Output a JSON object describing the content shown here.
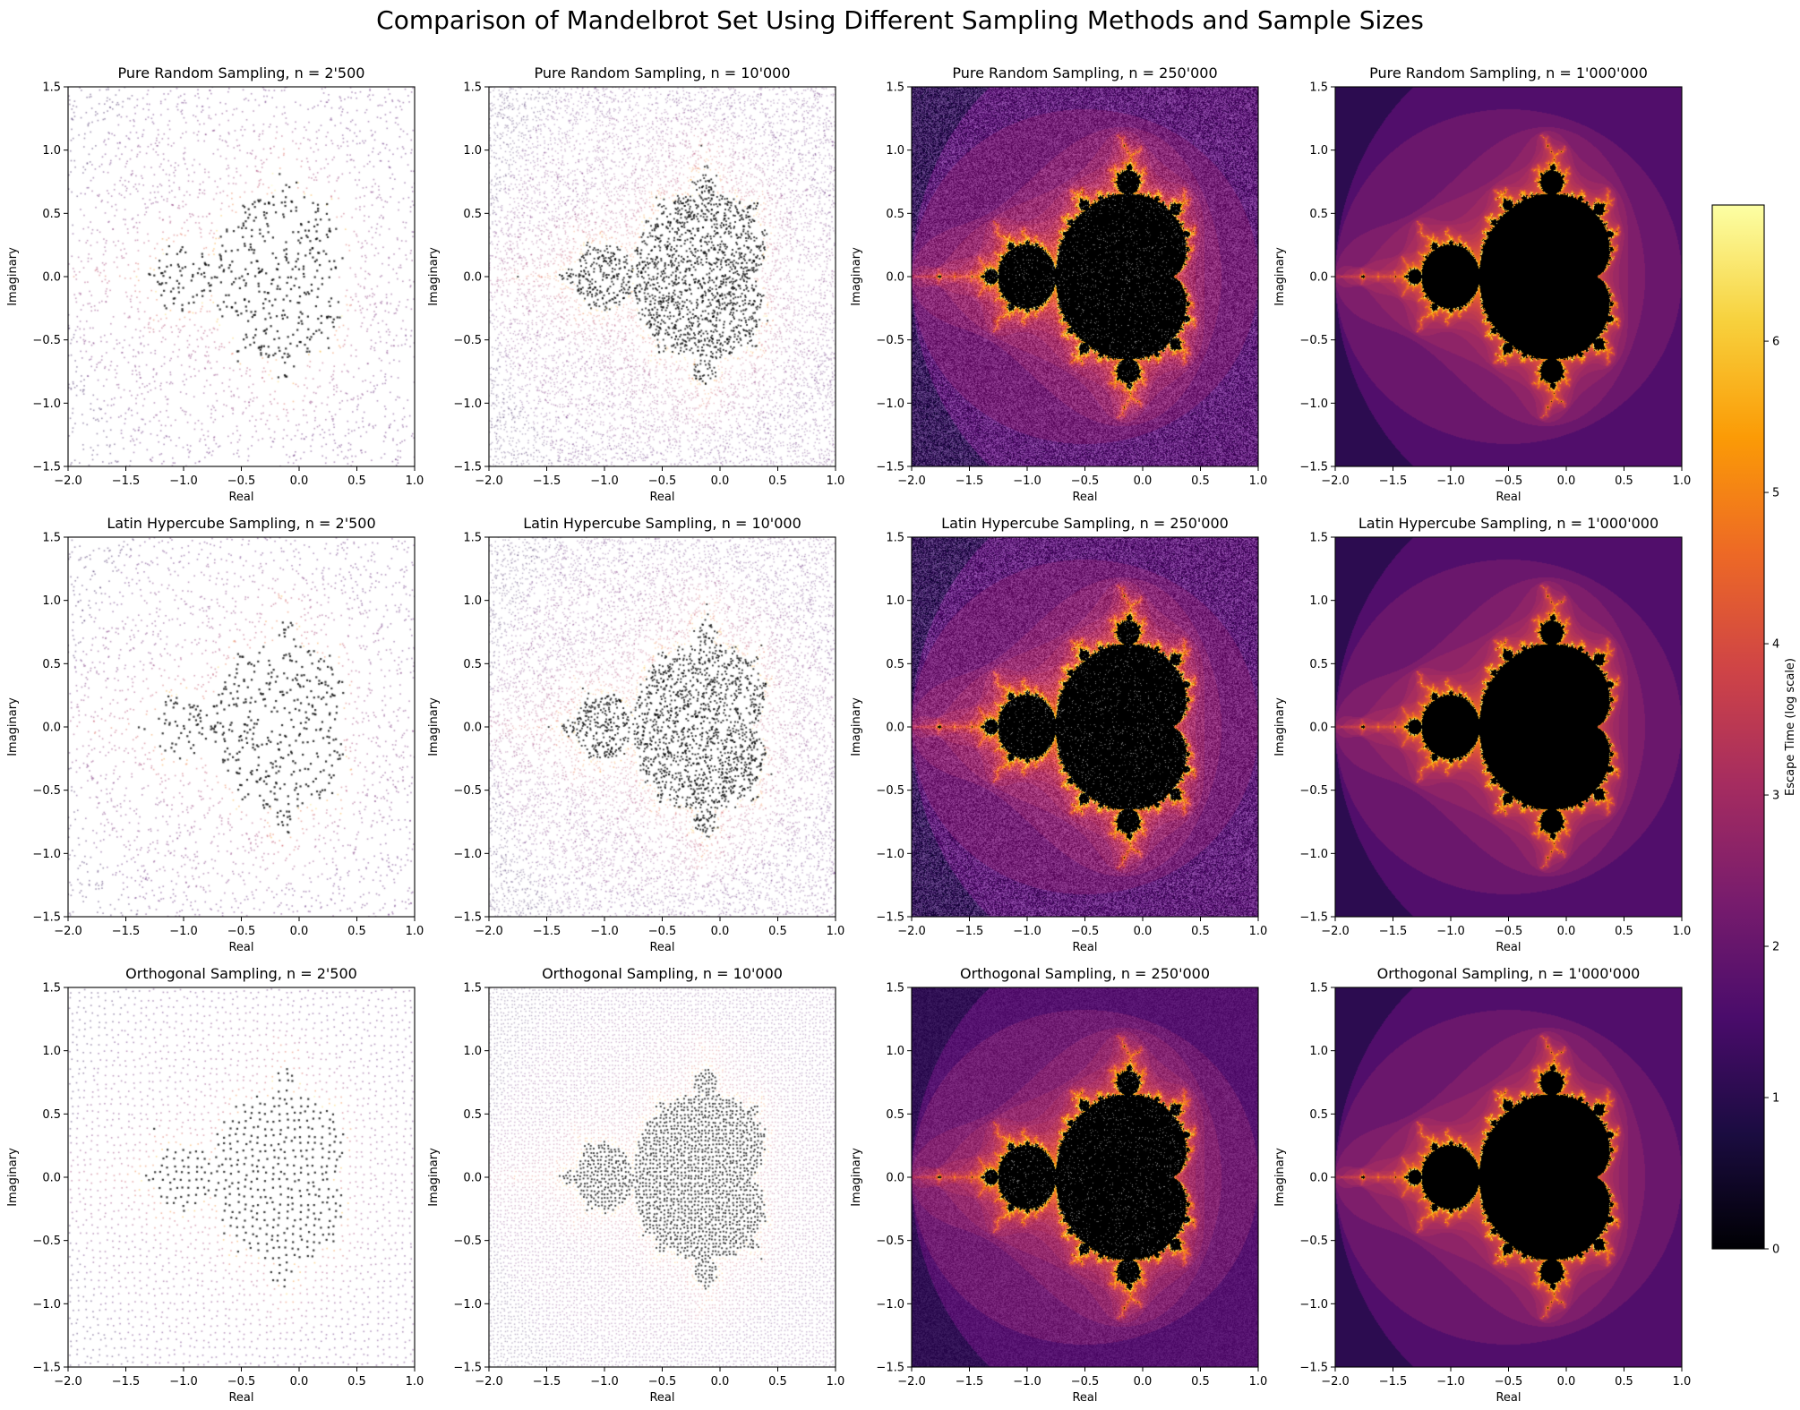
{
  "figure": {
    "title": "Comparison of Mandelbrot Set Using Different Sampling Methods and Sample Sizes"
  },
  "colors": {
    "inferno": [
      "#000004",
      "#1b0c41",
      "#4a0c6b",
      "#781c6d",
      "#a52c60",
      "#cf4446",
      "#ed6925",
      "#fb9b06",
      "#f7d13d",
      "#fcffa4"
    ],
    "set_point": "#000000"
  },
  "chart_data": {
    "type": "scatter",
    "layout": "grid 3x4",
    "rows": [
      "Pure Random Sampling",
      "Latin Hypercube Sampling",
      "Orthogonal Sampling"
    ],
    "columns": [
      "n = 2'500",
      "n = 10'000",
      "n = 250'000",
      "n = 1'000'000"
    ],
    "panels": [
      {
        "title": "Pure Random Sampling, n = 2'500",
        "method": "Pure Random Sampling",
        "n": 2500
      },
      {
        "title": "Pure Random Sampling, n = 10'000",
        "method": "Pure Random Sampling",
        "n": 10000
      },
      {
        "title": "Pure Random Sampling, n = 250'000",
        "method": "Pure Random Sampling",
        "n": 250000
      },
      {
        "title": "Pure Random Sampling, n = 1'000'000",
        "method": "Pure Random Sampling",
        "n": 1000000
      },
      {
        "title": "Latin Hypercube Sampling, n = 2'500",
        "method": "Latin Hypercube Sampling",
        "n": 2500
      },
      {
        "title": "Latin Hypercube Sampling, n = 10'000",
        "method": "Latin Hypercube Sampling",
        "n": 10000
      },
      {
        "title": "Latin Hypercube Sampling, n = 250'000",
        "method": "Latin Hypercube Sampling",
        "n": 250000
      },
      {
        "title": "Latin Hypercube Sampling, n = 1'000'000",
        "method": "Latin Hypercube Sampling",
        "n": 1000000
      },
      {
        "title": "Orthogonal Sampling, n = 2'500",
        "method": "Orthogonal Sampling",
        "n": 2500
      },
      {
        "title": "Orthogonal Sampling, n = 10'000",
        "method": "Orthogonal Sampling",
        "n": 10000
      },
      {
        "title": "Orthogonal Sampling, n = 250'000",
        "method": "Orthogonal Sampling",
        "n": 250000
      },
      {
        "title": "Orthogonal Sampling, n = 1'000'000",
        "method": "Orthogonal Sampling",
        "n": 1000000
      }
    ],
    "xlabel": "Real",
    "ylabel": "Imaginary",
    "xlim": [
      -2.0,
      1.0
    ],
    "ylim": [
      -1.5,
      1.5
    ],
    "xticks": [
      -2.0,
      -1.5,
      -1.0,
      -0.5,
      0.0,
      0.5,
      1.0
    ],
    "xtick_labels": [
      "−2.0",
      "−1.5",
      "−1.0",
      "−0.5",
      "0.0",
      "0.5",
      "1.0"
    ],
    "yticks": [
      -1.5,
      -1.0,
      -0.5,
      0.0,
      0.5,
      1.0,
      1.5
    ],
    "ytick_labels": [
      "−1.5",
      "−1.0",
      "−0.5",
      "0.0",
      "0.5",
      "1.0",
      "1.5"
    ],
    "grid": false,
    "color_encoding": "escape time, log scale, inferno colormap; points inside the set drawn black",
    "colorbar": {
      "label": "Escape Time (log scale)",
      "ticks": [
        0,
        1,
        2,
        3,
        4,
        5,
        6
      ],
      "tick_labels": [
        "0",
        "1",
        "2",
        "3",
        "4",
        "5",
        "6"
      ],
      "range": [
        0,
        6.9
      ],
      "colormap": "inferno",
      "placement": "right"
    }
  }
}
